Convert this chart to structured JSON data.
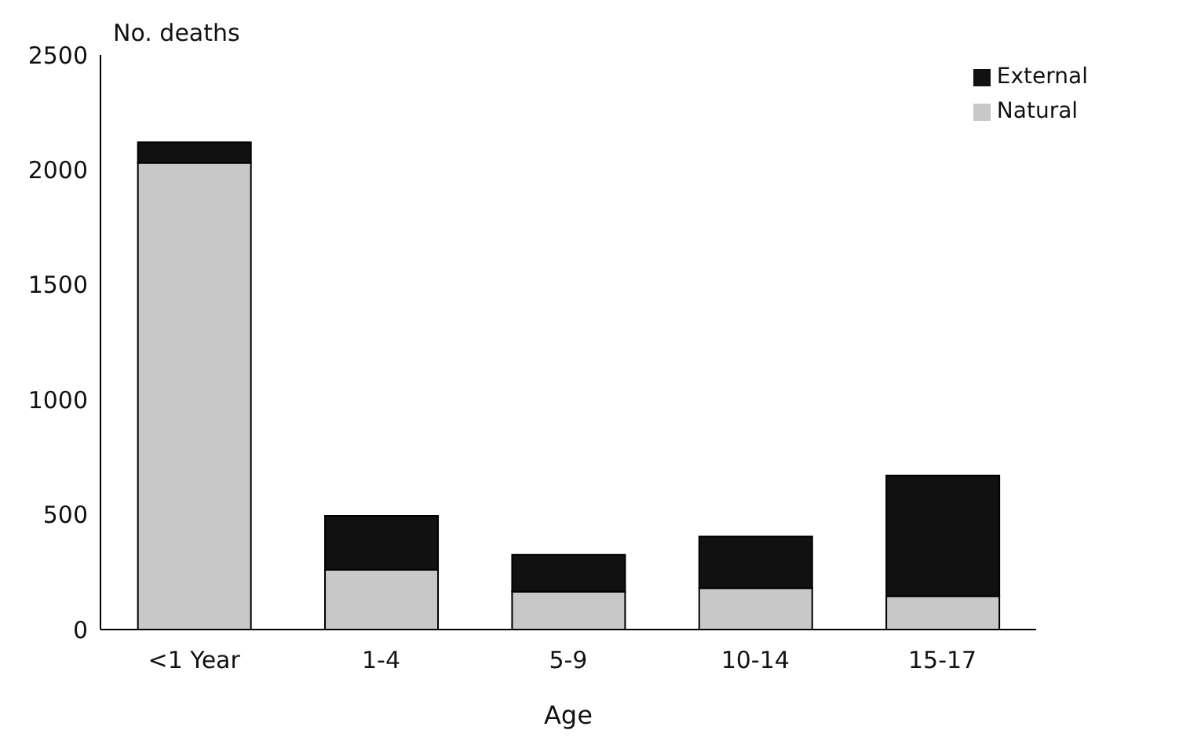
{
  "chart_data": {
    "type": "bar",
    "stacked": true,
    "ylabel": "No. deaths",
    "xlabel": "Age",
    "categories": [
      "<1 Year",
      "1-4",
      "5-9",
      "10-14",
      "15-17"
    ],
    "series": [
      {
        "name": "Natural",
        "color": "#c8c8c8",
        "values": [
          2030,
          260,
          165,
          180,
          145
        ]
      },
      {
        "name": "External",
        "color": "#111111",
        "values": [
          90,
          235,
          160,
          225,
          525
        ]
      }
    ],
    "ylim": [
      0,
      2500
    ],
    "yticks": [
      0,
      500,
      1000,
      1500,
      2000,
      2500
    ],
    "grid": false,
    "legend": "top right"
  }
}
